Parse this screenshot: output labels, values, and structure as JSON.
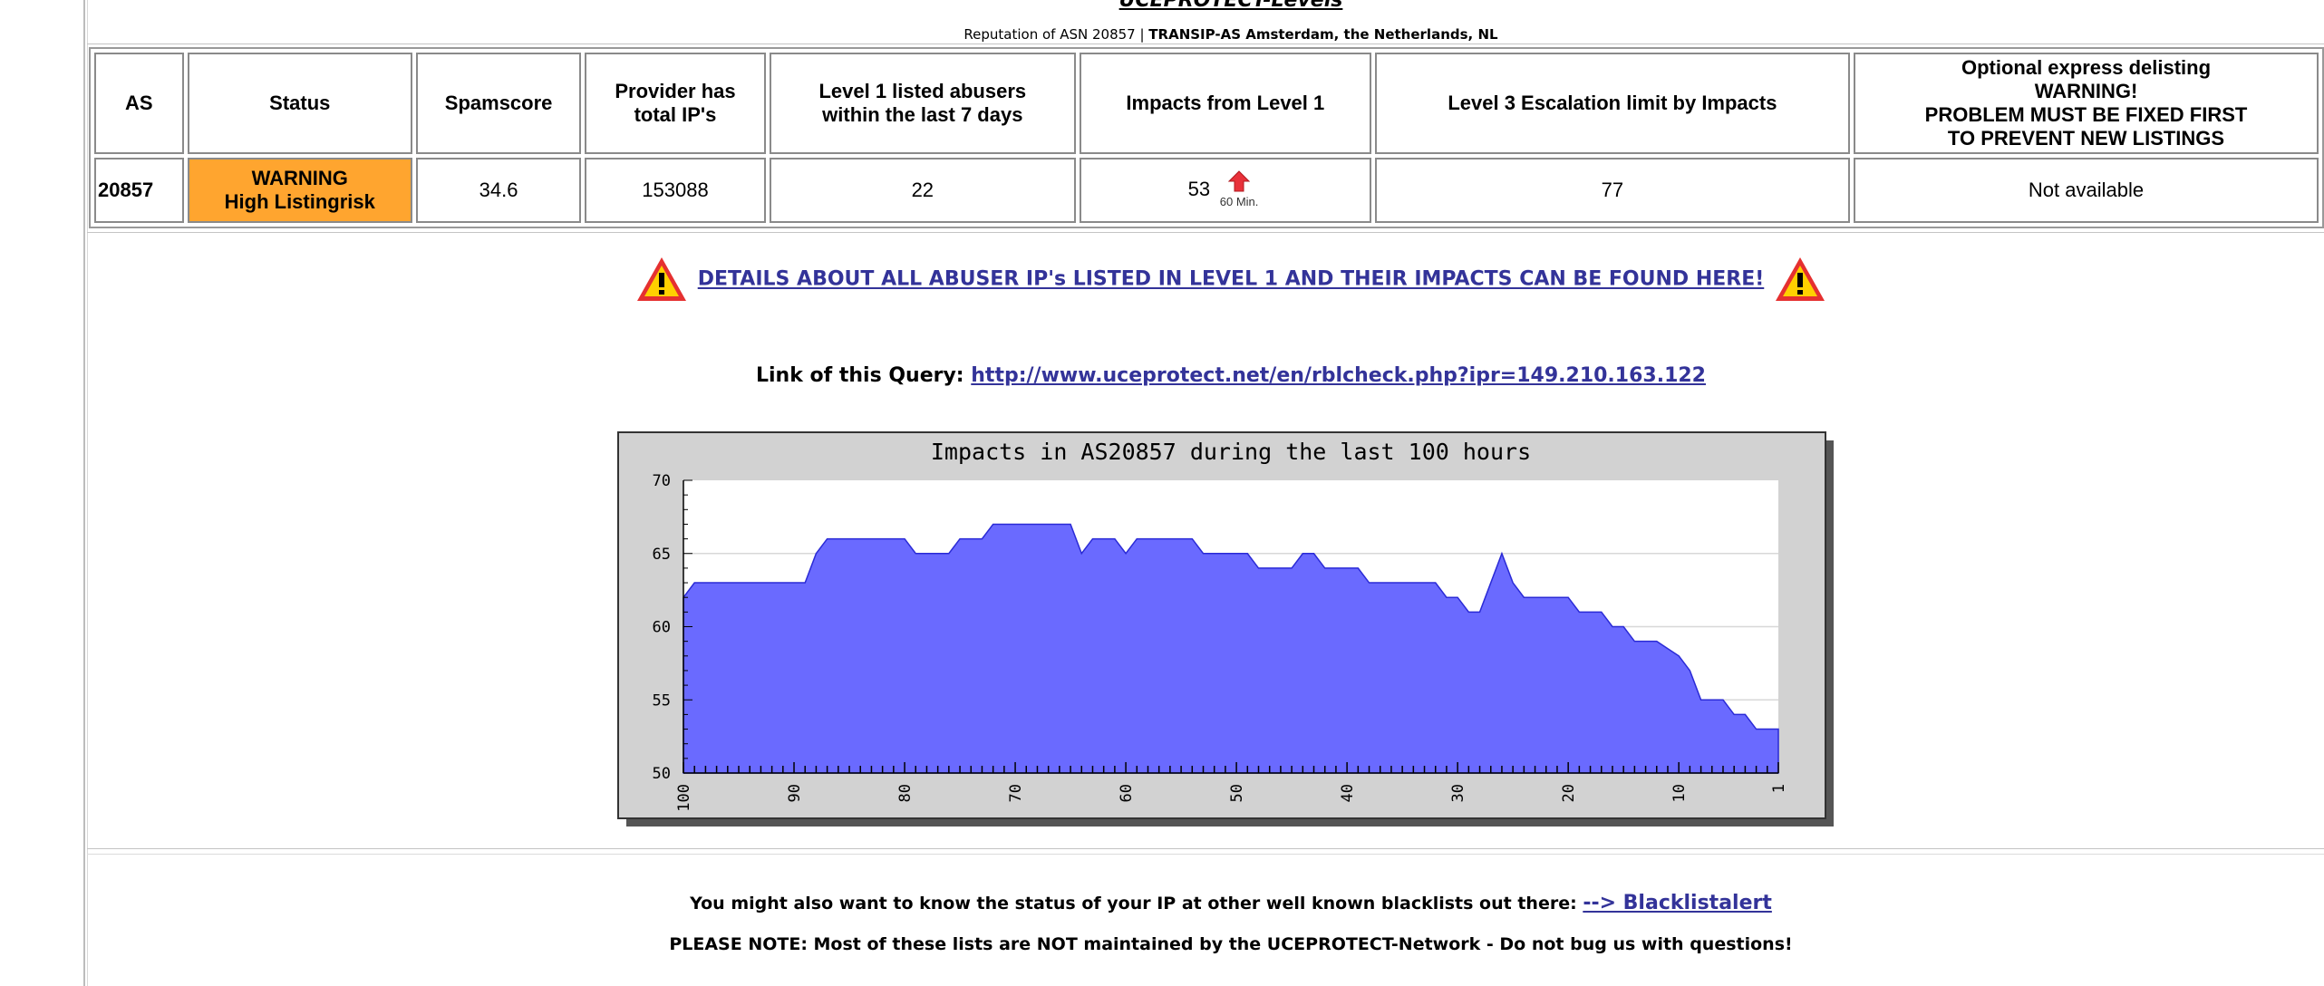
{
  "page": {
    "title": "UCEPROTECT-Levels",
    "reputation_prefix": "Reputation of ASN 20857 | ",
    "reputation_name": "TRANSIP-AS Amsterdam, the Netherlands, NL"
  },
  "table": {
    "headers": {
      "as": "AS",
      "status": "Status",
      "spamscore": "Spamscore",
      "provider_line1": "Provider has",
      "provider_line2": "total IP's",
      "level1_line1": "Level 1 listed abusers",
      "level1_line2": "within the last 7 days",
      "impacts": "Impacts from Level 1",
      "escalation": "Level 3 Escalation limit by Impacts",
      "optional_line1": "Optional express delisting",
      "optional_line2": "WARNING!",
      "optional_line3": "PROBLEM MUST BE FIXED FIRST",
      "optional_line4": "TO PREVENT NEW LISTINGS"
    },
    "row": {
      "as": "20857",
      "status_line1": "WARNING",
      "status_line2": "High Listingrisk",
      "status_color": "#ffa52f",
      "spamscore": "34.6",
      "total_ips": "153088",
      "level1_abusers": "22",
      "impacts": "53",
      "impacts_trend_icon": "red-up-arrow-icon",
      "impacts_trend_label": "60 Min.",
      "escalation_limit": "77",
      "express_delisting": "Not available"
    }
  },
  "details_link": "DETAILS ABOUT ALL ABUSER IP's LISTED IN LEVEL 1 AND THEIR IMPACTS CAN BE FOUND HERE!",
  "query": {
    "label": "Link of this Query: ",
    "url": "http://www.uceprotect.net/en/rblcheck.php?ipr=149.210.163.122"
  },
  "footer": {
    "blacklist_text": "You might also want to know the status of your IP at other well known blacklists out there: ",
    "blacklist_link": "--> Blacklistalert",
    "note": "PLEASE NOTE: Most of these lists are NOT maintained by the UCEPROTECT-Network - Do not bug us with questions!"
  },
  "colors": {
    "link": "#333399",
    "area_fill": "#6a6aff",
    "area_stroke": "#2a2ad6",
    "chart_frame": "#d2d2d2",
    "warn_red": "#e53030",
    "warn_yellow": "#ffd000"
  },
  "chart_data": {
    "type": "area",
    "title": "Impacts in AS20857 during the last 100 hours",
    "xlabel": "",
    "ylabel": "",
    "x_range": [
      100,
      1
    ],
    "ylim": [
      50,
      70
    ],
    "y_ticks": [
      50,
      55,
      60,
      65,
      70
    ],
    "x_ticks": [
      100,
      90,
      80,
      70,
      60,
      50,
      40,
      30,
      20,
      10,
      1
    ],
    "grid": true,
    "x": [
      100,
      99,
      98,
      97,
      96,
      95,
      94,
      93,
      92,
      91,
      90,
      89,
      88,
      87,
      86,
      85,
      84,
      83,
      82,
      81,
      80,
      79,
      78,
      77,
      76,
      75,
      74,
      73,
      72,
      71,
      70,
      69,
      68,
      67,
      66,
      65,
      64,
      63,
      62,
      61,
      60,
      59,
      58,
      57,
      56,
      55,
      54,
      53,
      52,
      51,
      50,
      49,
      48,
      47,
      46,
      45,
      44,
      43,
      42,
      41,
      40,
      39,
      38,
      37,
      36,
      35,
      34,
      33,
      32,
      31,
      30,
      29,
      28,
      27,
      26,
      25,
      24,
      23,
      22,
      21,
      20,
      19,
      18,
      17,
      16,
      15,
      14,
      13,
      12,
      11,
      10,
      9,
      8,
      7,
      6,
      5,
      4,
      3,
      2,
      1
    ],
    "values": [
      62,
      63,
      63,
      63,
      63,
      63,
      63,
      63,
      63,
      63,
      63,
      63,
      65,
      66,
      66,
      66,
      66,
      66,
      66,
      66,
      66,
      65,
      65,
      65,
      65,
      66,
      66,
      66,
      67,
      67,
      67,
      67,
      67,
      67,
      67,
      67,
      65,
      66,
      66,
      66,
      65,
      66,
      66,
      66,
      66,
      66,
      66,
      65,
      65,
      65,
      65,
      65,
      64,
      64,
      64,
      64,
      65,
      65,
      64,
      64,
      64,
      64,
      63,
      63,
      63,
      63,
      63,
      63,
      63,
      62,
      62,
      61,
      61,
      63,
      65,
      63,
      62,
      62,
      62,
      62,
      62,
      61,
      61,
      61,
      60,
      60,
      59,
      59,
      59,
      58.5,
      58,
      57,
      55,
      55,
      55,
      54,
      54,
      53,
      53,
      53
    ]
  }
}
